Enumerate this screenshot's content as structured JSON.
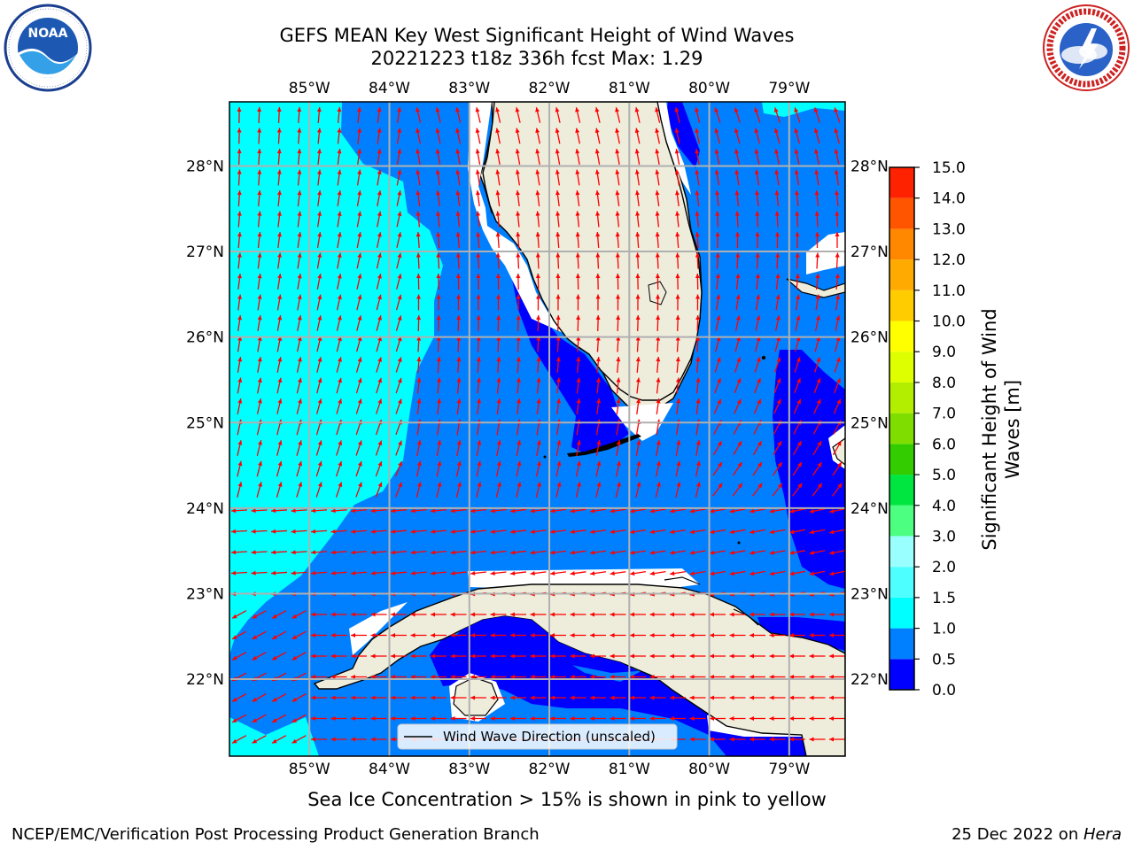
{
  "title_line1": "GEFS MEAN Key West Significant Height of Wind Waves",
  "title_line2": "20221223 t18z 336h fcst   Max: 1.29",
  "sea_ice_note": "Sea Ice Concentration > 15% is shown in pink to yellow",
  "footer_left": "NCEP/EMC/Verification Post Processing Product Generation Branch",
  "footer_date": "25 Dec 2022 on ",
  "footer_machine": "Hera",
  "legend_label": "Wind Wave Direction (unscaled)",
  "colorbar": {
    "label_line1": "Significant Height of Wind",
    "label_line2": "Waves [m]",
    "ticks": [
      "0.0",
      "0.5",
      "1.0",
      "1.5",
      "2.0",
      "3.0",
      "4.0",
      "5.0",
      "6.0",
      "7.0",
      "8.0",
      "9.0",
      "10.0",
      "11.0",
      "12.0",
      "13.0",
      "14.0",
      "15.0"
    ],
    "colors": [
      "#0000ff",
      "#0080ff",
      "#00ffff",
      "#4dffff",
      "#99ffff",
      "#4dff80",
      "#00e640",
      "#33cc00",
      "#80dd00",
      "#b3ee00",
      "#ddff00",
      "#ffff00",
      "#ffcc00",
      "#ffaa00",
      "#ff8800",
      "#ff5500",
      "#ff2200",
      "#ff0000"
    ]
  },
  "axes": {
    "lon_labels": [
      "85°W",
      "84°W",
      "83°W",
      "82°W",
      "81°W",
      "80°W",
      "79°W"
    ],
    "lat_labels": [
      "28°N",
      "27°N",
      "26°N",
      "25°N",
      "24°N",
      "23°N",
      "22°N"
    ]
  },
  "colors": {
    "land": "#eeeddc",
    "coast": "#000000",
    "arrow": "#ff0000",
    "grid": "#b0b0b0"
  },
  "chart_data": {
    "type": "heatmap",
    "title": "GEFS MEAN Key West Significant Height of Wind Waves",
    "subtitle": "20221223 t18z 336h fcst   Max: 1.29",
    "variable": "Significant Height of Wind Waves [m]",
    "max": 1.29,
    "xlim": [
      -86,
      -78.3
    ],
    "ylim": [
      21.1,
      28.75
    ],
    "color_scale": [
      0,
      0.5,
      1,
      1.5,
      2,
      3,
      4,
      5,
      6,
      7,
      8,
      9,
      10,
      11,
      12,
      13,
      14,
      15
    ],
    "grid": true,
    "legend": "lower-center",
    "logos": [
      "NOAA",
      "NATIONAL WEATHER SERVICE"
    ]
  }
}
